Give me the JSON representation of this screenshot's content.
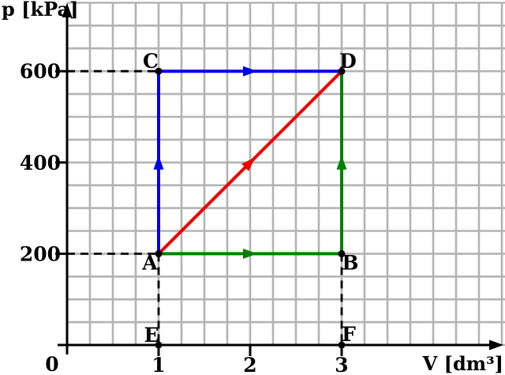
{
  "figure": {
    "background": "#ffffff",
    "colors": {
      "grid": "#b3b3b3",
      "axis": "#000000",
      "dash": "#000000",
      "dot": "#000000",
      "blue_path": "#0000ee",
      "red_path": "#ee0000",
      "green_path": "#008000"
    }
  },
  "chart_data": {
    "type": "line",
    "title": "",
    "xlabel": "V [dm³]",
    "ylabel": "p [kPa]",
    "origin_label": "0",
    "xlim": [
      0,
      4.7
    ],
    "ylim": [
      0,
      750
    ],
    "grid": true,
    "x_ticks": [
      {
        "v": 1,
        "label": "1"
      },
      {
        "v": 2,
        "label": "2"
      },
      {
        "v": 3,
        "label": "3"
      }
    ],
    "y_ticks": [
      {
        "v": 600,
        "label": "600"
      },
      {
        "v": 400,
        "label": "400"
      },
      {
        "v": 200,
        "label": "200"
      }
    ],
    "points": [
      {
        "name": "A",
        "V": 1,
        "p": 200
      },
      {
        "name": "B",
        "name_note": "",
        "V": 3,
        "p": 200
      },
      {
        "name": "C",
        "V": 1,
        "p": 600
      },
      {
        "name": "D",
        "V": 3,
        "p": 600
      },
      {
        "name": "E",
        "V": 1,
        "p": 0
      },
      {
        "name": "F",
        "V": 3,
        "p": 0
      }
    ],
    "series": [
      {
        "name": "isochoric-A-C-then-isobaric-C-D",
        "color": "#0000ee",
        "segments": [
          [
            "A",
            "C"
          ],
          [
            "C",
            "D"
          ]
        ]
      },
      {
        "name": "linear-A-D",
        "color": "#ee0000",
        "segments": [
          [
            "A",
            "D"
          ]
        ]
      },
      {
        "name": "isobaric-A-B-then-isochoric-B-D",
        "color": "#008000",
        "segments": [
          [
            "A",
            "B"
          ],
          [
            "B",
            "D"
          ]
        ]
      }
    ],
    "guides": [
      {
        "from": [
          0,
          600
        ],
        "to": [
          1,
          600
        ]
      },
      {
        "from": [
          0,
          200
        ],
        "to": [
          1,
          200
        ]
      },
      {
        "from": [
          1,
          200
        ],
        "to": [
          1,
          0
        ]
      },
      {
        "from": [
          3,
          200
        ],
        "to": [
          3,
          0
        ]
      }
    ]
  }
}
